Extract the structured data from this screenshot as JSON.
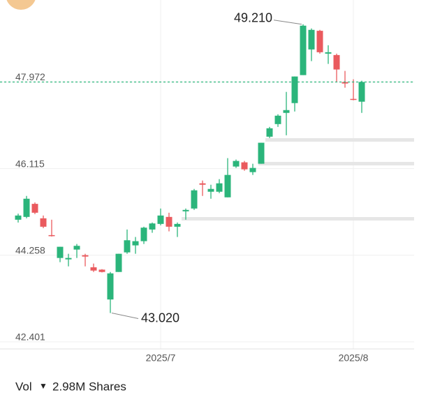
{
  "chart_data": {
    "type": "candlestick",
    "categories": [
      null,
      null,
      null,
      null,
      null,
      null,
      null,
      null,
      null,
      null,
      null,
      null,
      null,
      null,
      null,
      null,
      null,
      "2025/7",
      null,
      null,
      null,
      null,
      null,
      null,
      null,
      null,
      null,
      null,
      null,
      null,
      null,
      null,
      null,
      null,
      null,
      null,
      null,
      null,
      null,
      null,
      "2025/8",
      null
    ],
    "open": [
      45.02,
      45.08,
      45.36,
      45.05,
      44.69,
      44.2,
      44.17,
      44.38,
      44.26,
      44.0,
      43.95,
      43.31,
      43.9,
      44.32,
      44.47,
      44.56,
      44.81,
      44.93,
      45.08,
      44.87,
      45.2,
      45.26,
      45.8,
      45.62,
      45.62,
      45.5,
      46.16,
      46.25,
      46.04,
      46.22,
      46.8,
      47.07,
      47.31,
      47.52,
      48.12,
      48.67,
      49.07,
      48.58,
      48.55,
      47.97,
      47.61,
      47.55
    ],
    "high": [
      45.15,
      45.53,
      45.39,
      45.11,
      45.02,
      44.44,
      44.29,
      44.5,
      44.29,
      44.08,
      43.96,
      43.9,
      44.29,
      44.81,
      44.65,
      44.87,
      44.96,
      45.26,
      45.17,
      44.96,
      45.26,
      45.68,
      45.86,
      45.77,
      45.89,
      46.34,
      46.31,
      46.28,
      46.22,
      46.67,
      47.01,
      47.28,
      47.76,
      48.09,
      49.21,
      49.12,
      49.09,
      48.76,
      48.58,
      48.21,
      48.03,
      48.0
    ],
    "low": [
      44.96,
      45.05,
      45.14,
      44.84,
      44.66,
      44.11,
      44.02,
      44.2,
      44.02,
      43.9,
      43.89,
      43.02,
      43.9,
      44.29,
      44.29,
      44.5,
      44.74,
      44.9,
      44.77,
      44.65,
      45.02,
      45.23,
      45.53,
      45.47,
      45.59,
      45.5,
      46.13,
      46.07,
      45.98,
      46.22,
      46.77,
      47.01,
      46.83,
      47.34,
      48.12,
      48.42,
      48.58,
      48.36,
      47.97,
      47.85,
      47.58,
      47.31
    ],
    "close": [
      45.11,
      45.47,
      45.17,
      44.87,
      44.67,
      44.44,
      44.2,
      44.46,
      44.23,
      43.93,
      43.9,
      43.87,
      44.29,
      44.58,
      44.56,
      44.85,
      44.94,
      45.11,
      44.87,
      44.93,
      45.23,
      45.65,
      45.77,
      45.68,
      45.8,
      45.98,
      46.28,
      46.1,
      46.13,
      46.67,
      46.98,
      47.25,
      47.37,
      48.09,
      49.18,
      49.09,
      48.61,
      48.61,
      48.24,
      47.94,
      47.6,
      47.972
    ],
    "up_color": "#2bb57b",
    "down_color": "#ea5a5e",
    "ylim": [
      42.25,
      49.73
    ],
    "yticks": [
      42.401,
      44.258,
      46.115,
      47.972
    ],
    "grid": true,
    "price_line": {
      "value": 47.972,
      "color": "#2bb57b"
    },
    "annotations": [
      {
        "value": 49.21,
        "label": "49.210"
      },
      {
        "value": 43.02,
        "label": "43.020"
      }
    ],
    "footer": {
      "label": "Vol",
      "value": "2.98M Shares"
    }
  }
}
